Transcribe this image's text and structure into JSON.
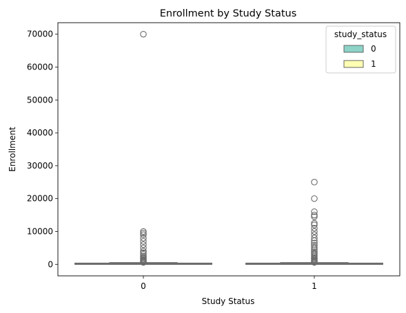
{
  "chart_data": {
    "type": "box",
    "title": "Enrollment by Study Status",
    "xlabel": "Study Status",
    "ylabel": "Enrollment",
    "categories": [
      "0",
      "1"
    ],
    "ylim": [
      -3500,
      73500
    ],
    "yticks": [
      0,
      10000,
      20000,
      30000,
      40000,
      50000,
      60000,
      70000
    ],
    "legend": {
      "title": "study_status",
      "placement": "top-right",
      "entries": [
        {
          "label": "0",
          "color": "#8dd3c7"
        },
        {
          "label": "1",
          "color": "#ffffb3"
        }
      ]
    },
    "series": [
      {
        "category": "0",
        "color": "#8dd3c7",
        "q1": 30,
        "median": 80,
        "q3": 220,
        "whisker_low": 0,
        "whisker_high": 500,
        "outliers": [
          600,
          800,
          1000,
          1200,
          1500,
          1800,
          2100,
          2500,
          3000,
          3500,
          4000,
          5000,
          6000,
          7000,
          8000,
          9000,
          9500,
          10000,
          70000
        ]
      },
      {
        "category": "1",
        "color": "#ffffb3",
        "q1": 30,
        "median": 80,
        "q3": 220,
        "whisker_low": 0,
        "whisker_high": 500,
        "outliers": [
          600,
          800,
          1000,
          1200,
          1500,
          1800,
          2100,
          2500,
          2900,
          3300,
          3700,
          4200,
          4700,
          5200,
          5800,
          6500,
          7200,
          8000,
          9000,
          10000,
          11000,
          12000,
          12500,
          14500,
          15000,
          16000,
          20000,
          25000
        ]
      }
    ]
  }
}
